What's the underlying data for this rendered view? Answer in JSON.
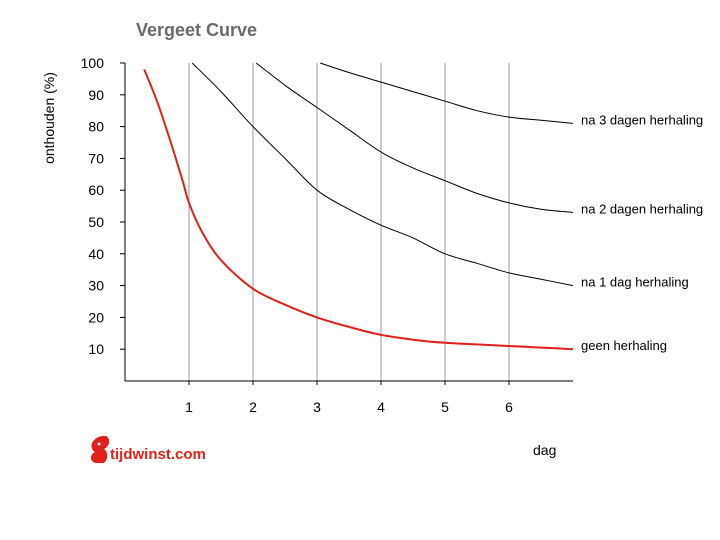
{
  "chart_data": {
    "type": "line",
    "title": "Vergeet Curve",
    "xlabel": "dag",
    "ylabel": "onthouden (%)",
    "xlim": [
      0,
      7
    ],
    "ylim": [
      0,
      100
    ],
    "x_ticks": [
      "1",
      "2",
      "3",
      "4",
      "5",
      "6"
    ],
    "y_ticks": [
      "10",
      "20",
      "30",
      "40",
      "50",
      "60",
      "70",
      "80",
      "90",
      "100"
    ],
    "grid": "vertical",
    "series": [
      {
        "name": "geen herhaling",
        "color": "#e0201b",
        "x": [
          0.3,
          0.5,
          0.7,
          0.9,
          1.0,
          1.2,
          1.5,
          2.0,
          2.5,
          3.0,
          3.5,
          4.0,
          4.5,
          5.0,
          5.5,
          6.0,
          6.5,
          7.0
        ],
        "y": [
          98,
          88,
          76,
          63,
          56,
          47,
          38,
          29,
          24,
          20,
          17,
          14.5,
          13,
          12,
          11.5,
          11,
          10.5,
          10
        ]
      },
      {
        "name": "na 1 dag herhaling",
        "color": "#000000",
        "x": [
          1.05,
          1.5,
          2.0,
          2.5,
          3.0,
          3.5,
          4.0,
          4.5,
          5.0,
          5.5,
          6.0,
          6.5,
          7.0
        ],
        "y": [
          100,
          91,
          80,
          70,
          60,
          54,
          49,
          45,
          40,
          37,
          34,
          32,
          30
        ]
      },
      {
        "name": "na 2 dagen herhaling",
        "color": "#000000",
        "x": [
          2.05,
          2.5,
          3.0,
          3.5,
          4.0,
          4.5,
          5.0,
          5.5,
          6.0,
          6.5,
          7.0
        ],
        "y": [
          100,
          93,
          86,
          79,
          72,
          67,
          63,
          59,
          56,
          54,
          53
        ]
      },
      {
        "name": "na 3 dagen herhaling",
        "color": "#000000",
        "x": [
          3.05,
          3.5,
          4.0,
          4.5,
          5.0,
          5.5,
          6.0,
          6.5,
          7.0
        ],
        "y": [
          100,
          97,
          94,
          91,
          88,
          85,
          83,
          82,
          81
        ]
      }
    ]
  },
  "logo": {
    "text": "tijdwinst.com",
    "color": "#e0201b"
  }
}
